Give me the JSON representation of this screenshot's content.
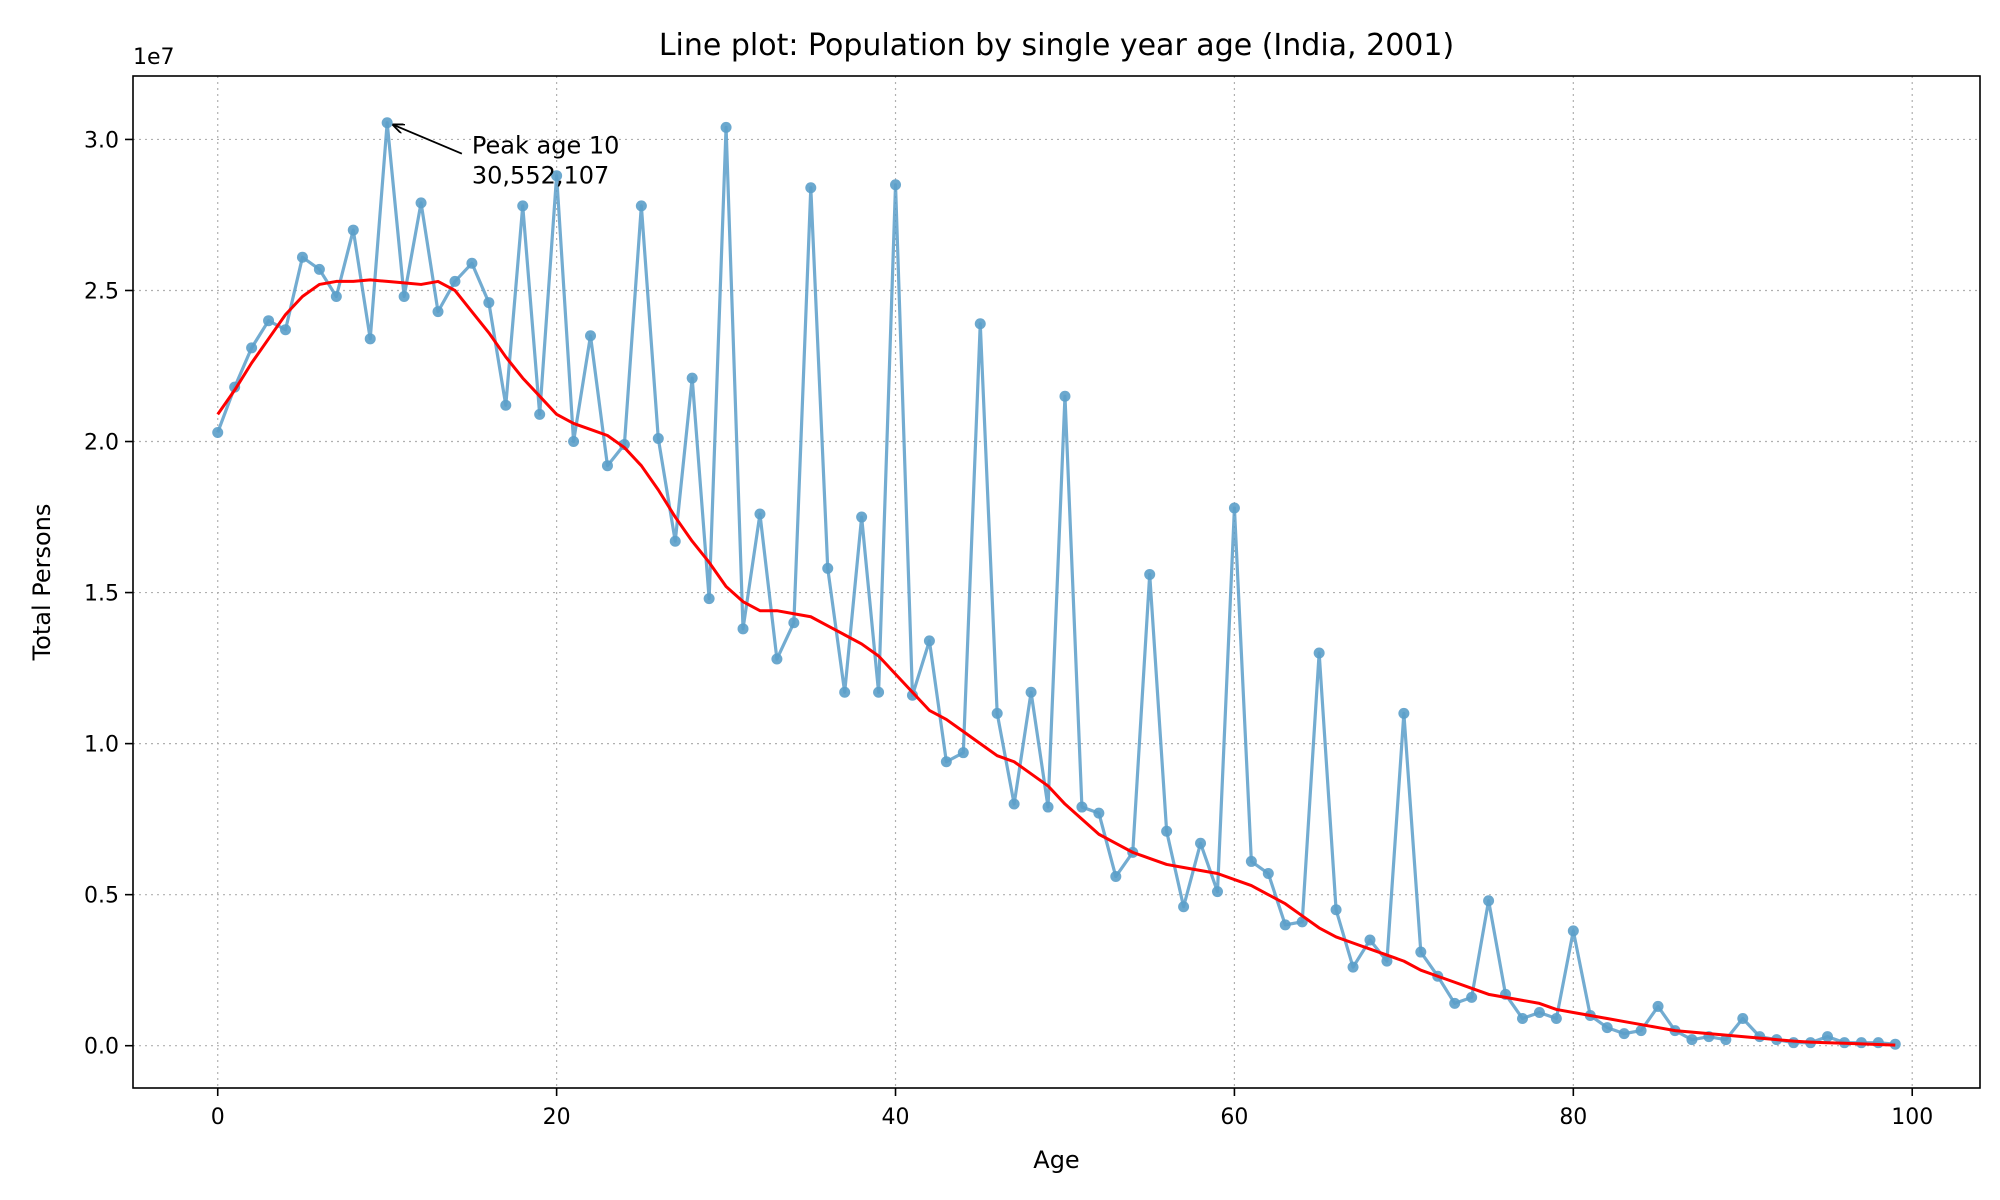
{
  "chart_data": {
    "type": "line",
    "title": "Line plot: Population by single year age (India, 2001)",
    "xlabel": "Age",
    "ylabel": "Total Persons",
    "y_scale_label": "1e7",
    "xlim": [
      -5,
      104
    ],
    "ylim": [
      -1400000,
      32100000
    ],
    "x_ticks": [
      0,
      20,
      40,
      60,
      80,
      100
    ],
    "x_tick_labels": [
      "0",
      "20",
      "40",
      "60",
      "80",
      "100"
    ],
    "y_ticks": [
      0,
      5000000,
      10000000,
      15000000,
      20000000,
      25000000,
      30000000
    ],
    "y_tick_labels": [
      "0.0",
      "0.5",
      "1.0",
      "1.5",
      "2.0",
      "2.5",
      "3.0"
    ],
    "grid": true,
    "series": [
      {
        "color": "#5b9ec9",
        "marker": "circle",
        "x": [
          0,
          1,
          2,
          3,
          4,
          5,
          6,
          7,
          8,
          9,
          10,
          11,
          12,
          13,
          14,
          15,
          16,
          17,
          18,
          19,
          20,
          21,
          22,
          23,
          24,
          25,
          26,
          27,
          28,
          29,
          30,
          31,
          32,
          33,
          34,
          35,
          36,
          37,
          38,
          39,
          40,
          41,
          42,
          43,
          44,
          45,
          46,
          47,
          48,
          49,
          50,
          51,
          52,
          53,
          54,
          55,
          56,
          57,
          58,
          59,
          60,
          61,
          62,
          63,
          64,
          65,
          66,
          67,
          68,
          69,
          70,
          71,
          72,
          73,
          74,
          75,
          76,
          77,
          78,
          79,
          80,
          81,
          82,
          83,
          84,
          85,
          86,
          87,
          88,
          89,
          90,
          91,
          92,
          93,
          94,
          95,
          96,
          97,
          98,
          99
        ],
        "values": [
          20300000,
          21800000,
          23100000,
          24000000,
          23700000,
          26100000,
          25700000,
          24800000,
          27000000,
          23400000,
          30552107,
          24800000,
          27900000,
          24300000,
          25300000,
          25900000,
          24600000,
          21200000,
          27800000,
          20900000,
          28800000,
          20000000,
          23500000,
          19200000,
          19900000,
          27800000,
          20100000,
          16700000,
          22100000,
          14800000,
          30400000,
          13800000,
          17600000,
          12800000,
          14000000,
          28400000,
          15800000,
          11700000,
          17500000,
          11700000,
          28500000,
          11600000,
          13400000,
          9400000,
          9700000,
          23900000,
          11000000,
          8000000,
          11700000,
          7900000,
          21500000,
          7900000,
          7700000,
          5600000,
          6400000,
          15600000,
          7100000,
          4600000,
          6700000,
          5100000,
          17800000,
          6100000,
          5700000,
          4000000,
          4100000,
          13000000,
          4500000,
          2600000,
          3500000,
          2800000,
          11000000,
          3100000,
          2300000,
          1400000,
          1600000,
          4800000,
          1700000,
          900000,
          1100000,
          900000,
          3800000,
          1000000,
          600000,
          400000,
          500000,
          1300000,
          500000,
          200000,
          300000,
          200000,
          900000,
          300000,
          200000,
          100000,
          100000,
          300000,
          100000,
          100000,
          100000,
          50000
        ]
      },
      {
        "color": "#ff0000",
        "marker": "none",
        "x": [
          0,
          1,
          2,
          3,
          4,
          5,
          6,
          7,
          8,
          9,
          10,
          11,
          12,
          13,
          14,
          15,
          16,
          17,
          18,
          19,
          20,
          21,
          22,
          23,
          24,
          25,
          26,
          27,
          28,
          29,
          30,
          31,
          32,
          33,
          34,
          35,
          36,
          37,
          38,
          39,
          40,
          41,
          42,
          43,
          44,
          45,
          46,
          47,
          48,
          49,
          50,
          51,
          52,
          53,
          54,
          55,
          56,
          57,
          58,
          59,
          60,
          61,
          62,
          63,
          64,
          65,
          66,
          67,
          68,
          69,
          70,
          71,
          72,
          73,
          74,
          75,
          76,
          77,
          78,
          79,
          80,
          81,
          82,
          83,
          84,
          85,
          86,
          87,
          88,
          89,
          90,
          91,
          92,
          93,
          94,
          95,
          96,
          97,
          98,
          99
        ],
        "values": [
          20900000,
          21700000,
          22600000,
          23400000,
          24200000,
          24800000,
          25200000,
          25300000,
          25300000,
          25350000,
          25300000,
          25250000,
          25200000,
          25300000,
          25000000,
          24300000,
          23600000,
          22800000,
          22100000,
          21500000,
          20900000,
          20600000,
          20400000,
          20200000,
          19800000,
          19200000,
          18400000,
          17500000,
          16700000,
          16000000,
          15200000,
          14700000,
          14400000,
          14400000,
          14300000,
          14200000,
          13900000,
          13600000,
          13300000,
          12900000,
          12300000,
          11700000,
          11100000,
          10800000,
          10400000,
          10000000,
          9600000,
          9400000,
          9000000,
          8600000,
          8000000,
          7500000,
          7000000,
          6700000,
          6400000,
          6200000,
          6000000,
          5900000,
          5800000,
          5700000,
          5500000,
          5300000,
          5000000,
          4700000,
          4300000,
          3900000,
          3600000,
          3400000,
          3200000,
          3000000,
          2800000,
          2500000,
          2300000,
          2100000,
          1900000,
          1700000,
          1600000,
          1500000,
          1400000,
          1200000,
          1100000,
          1000000,
          900000,
          800000,
          700000,
          600000,
          500000,
          450000,
          400000,
          350000,
          300000,
          250000,
          200000,
          150000,
          120000,
          100000,
          80000,
          60000,
          40000,
          20000
        ]
      }
    ],
    "annotation": {
      "line1": "Peak age 10",
      "line2": "30,552,107",
      "point_x": 10,
      "point_y": 30552107,
      "text_x": 15,
      "text_y": 29000000
    }
  }
}
